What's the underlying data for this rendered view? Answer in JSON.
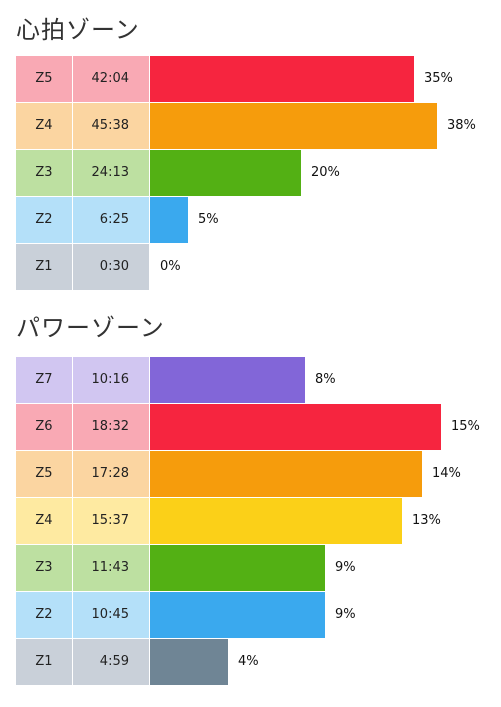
{
  "heart_rate": {
    "title": "心拍ゾーン",
    "rows": [
      {
        "zone": "Z5",
        "time": "42:04",
        "percent": "35%",
        "value": 35,
        "label_color": "#f9a9b4",
        "bar_color": "#f6253f"
      },
      {
        "zone": "Z4",
        "time": "45:38",
        "percent": "38%",
        "value": 38,
        "label_color": "#fbd5a1",
        "bar_color": "#f69c0c"
      },
      {
        "zone": "Z3",
        "time": "24:13",
        "percent": "20%",
        "value": 20,
        "label_color": "#bde0a1",
        "bar_color": "#53b014"
      },
      {
        "zone": "Z2",
        "time": "6:25",
        "percent": "5%",
        "value": 5,
        "label_color": "#b4e0f9",
        "bar_color": "#3aa9ee"
      },
      {
        "zone": "Z1",
        "time": "0:30",
        "percent": "0%",
        "value": 0,
        "label_color": "#c9d0d9",
        "bar_color": "#6f8595"
      }
    ]
  },
  "power": {
    "title": "パワーゾーン",
    "rows": [
      {
        "zone": "Z7",
        "time": "10:16",
        "percent": "8%",
        "value": 8,
        "label_color": "#d1c6f1",
        "bar_color": "#8266d8"
      },
      {
        "zone": "Z6",
        "time": "18:32",
        "percent": "15%",
        "value": 15,
        "label_color": "#f9a9b4",
        "bar_color": "#f6253f"
      },
      {
        "zone": "Z5",
        "time": "17:28",
        "percent": "14%",
        "value": 14,
        "label_color": "#fbd5a1",
        "bar_color": "#f69c0c"
      },
      {
        "zone": "Z4",
        "time": "15:37",
        "percent": "13%",
        "value": 13,
        "label_color": "#feeaa1",
        "bar_color": "#fbd018"
      },
      {
        "zone": "Z3",
        "time": "11:43",
        "percent": "9%",
        "value": 9,
        "label_color": "#bde0a1",
        "bar_color": "#53b014"
      },
      {
        "zone": "Z2",
        "time": "10:45",
        "percent": "9%",
        "value": 9,
        "label_color": "#b4e0f9",
        "bar_color": "#3aa9ee"
      },
      {
        "zone": "Z1",
        "time": "4:59",
        "percent": "4%",
        "value": 4,
        "label_color": "#c9d0d9",
        "bar_color": "#6f8595"
      }
    ]
  }
}
